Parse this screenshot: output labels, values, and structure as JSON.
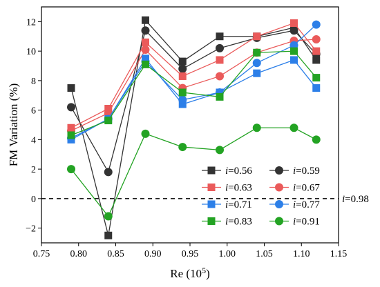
{
  "chart_data": {
    "type": "line",
    "xlabel": "Re (10",
    "xlabel_sup": "5",
    "xlabel_end": ")",
    "ylabel": "FM Variation (%)",
    "xlim": [
      0.75,
      1.15
    ],
    "ylim": [
      -3,
      13
    ],
    "xticks": [
      0.75,
      0.8,
      0.85,
      0.9,
      0.95,
      1.0,
      1.05,
      1.1,
      1.15
    ],
    "xtick_labels": [
      "0.75",
      "0.80",
      "0.85",
      "0.90",
      "0.95",
      "1.00",
      "1.05",
      "1.10",
      "1.15"
    ],
    "yticks": [
      -2,
      0,
      2,
      4,
      6,
      8,
      10,
      12
    ],
    "ytick_labels": [
      "−2",
      "0",
      "2",
      "4",
      "6",
      "8",
      "10",
      "12"
    ],
    "x": [
      0.79,
      0.84,
      0.89,
      0.94,
      0.99,
      1.04,
      1.09,
      1.12
    ],
    "series": [
      {
        "name_italic": "i",
        "name_rest": "=0.56",
        "marker": "square",
        "color": "#333333",
        "values": [
          7.5,
          -2.5,
          12.1,
          9.3,
          11.0,
          11.0,
          11.6,
          9.4
        ]
      },
      {
        "name_italic": "i",
        "name_rest": "=0.59",
        "marker": "circle",
        "color": "#333333",
        "values": [
          6.2,
          1.8,
          11.4,
          8.8,
          10.2,
          10.9,
          11.4,
          9.8
        ]
      },
      {
        "name_italic": "i",
        "name_rest": "=0.63",
        "marker": "square",
        "color": "#ea5a5a",
        "values": [
          4.8,
          6.1,
          10.6,
          8.3,
          9.4,
          11.0,
          11.9,
          10.0
        ]
      },
      {
        "name_italic": "i",
        "name_rest": "=0.67",
        "marker": "circle",
        "color": "#ea5a5a",
        "values": [
          4.6,
          5.8,
          10.1,
          7.5,
          8.3,
          9.9,
          10.7,
          10.8
        ]
      },
      {
        "name_italic": "i",
        "name_rest": "=0.71",
        "marker": "square",
        "color": "#2c7fe8",
        "values": [
          4.0,
          5.4,
          9.5,
          6.4,
          7.2,
          8.5,
          9.4,
          7.5
        ]
      },
      {
        "name_italic": "i",
        "name_rest": "=0.77",
        "marker": "circle",
        "color": "#2c7fe8",
        "values": [
          4.1,
          5.4,
          9.3,
          6.7,
          7.2,
          9.2,
          10.4,
          11.8
        ]
      },
      {
        "name_italic": "i",
        "name_rest": "=0.83",
        "marker": "square",
        "color": "#23a323",
        "values": [
          4.3,
          5.3,
          9.1,
          7.2,
          6.9,
          9.9,
          10.0,
          8.2
        ]
      },
      {
        "name_italic": "i",
        "name_rest": "=0.91",
        "marker": "circle",
        "color": "#23a323",
        "values": [
          2.0,
          -1.2,
          4.4,
          3.5,
          3.3,
          4.8,
          4.8,
          4.0
        ]
      }
    ],
    "reference_line": {
      "y": 0,
      "style": "dashed",
      "color": "#000000",
      "label_italic": "i",
      "label_rest": "=0.98"
    },
    "legend": {
      "placement": "bottom-right",
      "columns": 2
    },
    "grid": false
  }
}
